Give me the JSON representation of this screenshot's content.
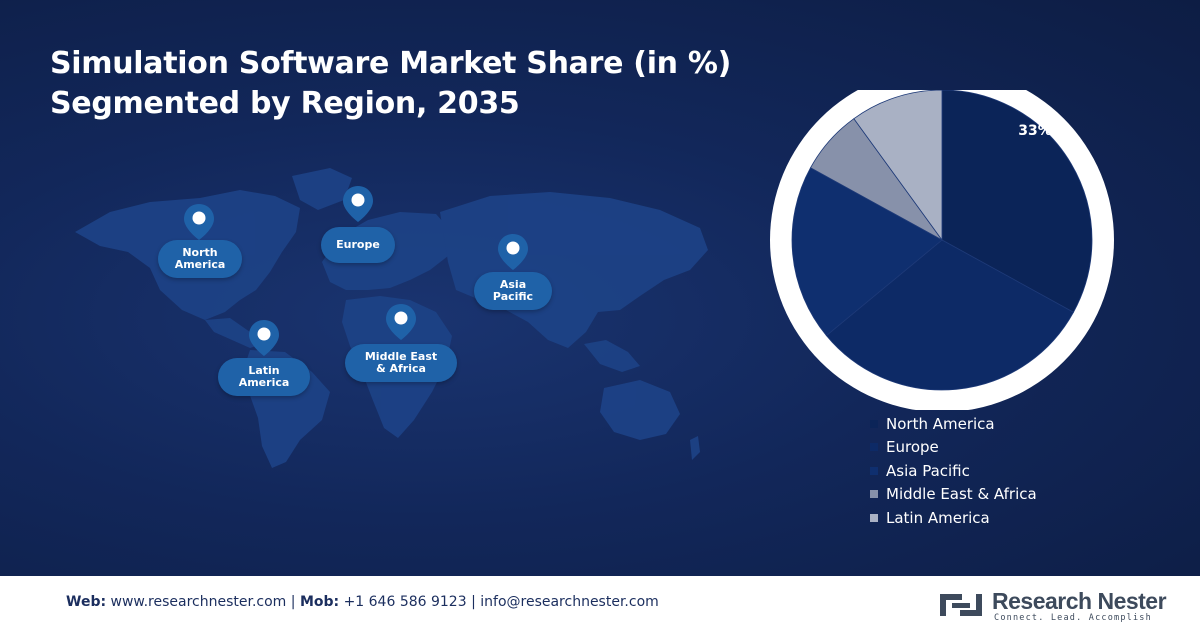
{
  "title_lines": [
    "Simulation Software Market Share (in %)",
    "Segmented by Region, 2035"
  ],
  "regions": [
    {
      "name": "North America",
      "lines": [
        "North",
        "America"
      ]
    },
    {
      "name": "Europe",
      "lines": [
        "Europe"
      ]
    },
    {
      "name": "Asia Pacific",
      "lines": [
        "Asia",
        "Pacific"
      ]
    },
    {
      "name": "Middle East & Africa",
      "lines": [
        "Middle East",
        "& Africa"
      ]
    },
    {
      "name": "Latin America",
      "lines": [
        "Latin",
        "America"
      ]
    }
  ],
  "chart_data": {
    "type": "pie",
    "labels": [
      "North America",
      "Europe",
      "Asia Pacific",
      "Middle East & Africa",
      "Latin America"
    ],
    "values": [
      33,
      31,
      19,
      7,
      10
    ],
    "data_labels": [
      "33%",
      "",
      "",
      "",
      ""
    ],
    "colors": [
      "#0b2458",
      "#0d2a66",
      "#0f2f6f",
      "#8791aa",
      "#a9b1c4"
    ],
    "legend_position": "bottom-right"
  },
  "footer": {
    "web_label": "Web:",
    "web_value": "www.researchnester.com",
    "separator": "|",
    "mob_label": "Mob:",
    "mob_value": "+1 646 586 9123",
    "email": "info@researchnester.com"
  },
  "logo": {
    "name": "Research Nester",
    "tagline": "Connect. Lead. Accomplish"
  },
  "icons": {
    "map_pin": "map-pin-icon",
    "logo_mark": "research-nester-logo-icon"
  }
}
